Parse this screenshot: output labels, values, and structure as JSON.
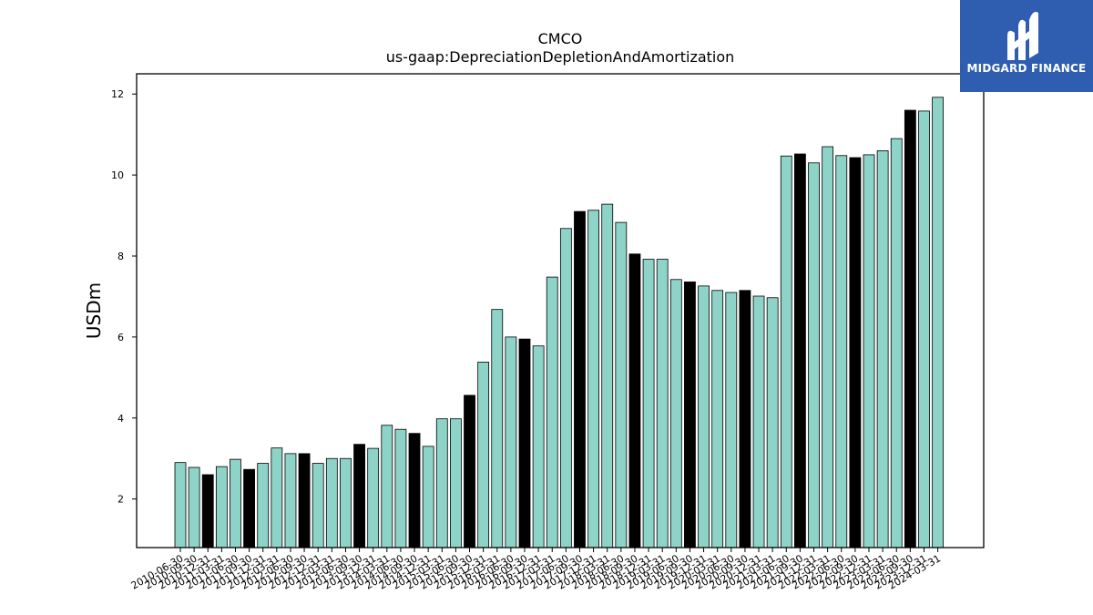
{
  "chart_data": {
    "type": "bar",
    "title": "CMCO",
    "subtitle": "us-gaap:DepreciationDepletionAndAmortization",
    "xlabel": "",
    "ylabel": "USDm",
    "ylim": [
      0.8,
      12.5
    ],
    "yticks": [
      2,
      4,
      6,
      8,
      10,
      12
    ],
    "grid": false,
    "colors": {
      "quarter": "#8dd3c7",
      "fiscal_year_end": "#000000",
      "edge": "#000000"
    },
    "categories": [
      "2010-06-30",
      "2010-09-30",
      "2010-12-31",
      "2011-03-31",
      "2011-06-30",
      "2011-09-30",
      "2011-12-31",
      "2012-03-31",
      "2012-06-30",
      "2012-09-30",
      "2012-12-31",
      "2013-03-31",
      "2013-06-30",
      "2013-09-30",
      "2013-12-31",
      "2014-03-31",
      "2014-06-30",
      "2014-09-30",
      "2014-12-31",
      "2015-03-31",
      "2015-06-30",
      "2015-09-30",
      "2015-12-31",
      "2016-03-31",
      "2016-06-30",
      "2016-09-30",
      "2016-12-31",
      "2017-03-31",
      "2017-06-30",
      "2017-09-30",
      "2017-12-31",
      "2018-03-31",
      "2018-06-30",
      "2018-09-30",
      "2018-12-31",
      "2019-03-31",
      "2019-06-30",
      "2019-09-30",
      "2019-12-31",
      "2020-03-31",
      "2020-06-30",
      "2020-09-30",
      "2020-12-31",
      "2021-03-31",
      "2021-06-30",
      "2021-09-30",
      "2021-12-31",
      "2022-03-31",
      "2022-06-30",
      "2022-09-30",
      "2022-12-31",
      "2023-03-31",
      "2023-06-30",
      "2023-09-30",
      "2023-12-31",
      "2024-03-31"
    ],
    "values": [
      2.9,
      2.78,
      2.6,
      2.8,
      2.98,
      2.73,
      2.88,
      3.26,
      3.12,
      3.12,
      2.88,
      3.0,
      3.0,
      3.35,
      3.25,
      3.82,
      3.72,
      3.62,
      3.3,
      3.98,
      3.98,
      4.56,
      5.38,
      6.68,
      6.0,
      5.95,
      5.78,
      7.48,
      8.68,
      9.1,
      9.13,
      9.28,
      8.83,
      8.05,
      7.92,
      7.92,
      7.42,
      7.36,
      7.26,
      7.15,
      7.1,
      7.15,
      7.01,
      6.97,
      10.47,
      10.52,
      10.3,
      10.7,
      10.48,
      10.43,
      10.5,
      10.6,
      10.9,
      11.6,
      11.58,
      11.92
    ],
    "highlight": [
      false,
      false,
      true,
      false,
      false,
      true,
      false,
      false,
      false,
      true,
      false,
      false,
      false,
      true,
      false,
      false,
      false,
      true,
      false,
      false,
      false,
      true,
      false,
      false,
      false,
      true,
      false,
      false,
      false,
      true,
      false,
      false,
      false,
      true,
      false,
      false,
      false,
      true,
      false,
      false,
      false,
      true,
      false,
      false,
      false,
      true,
      false,
      false,
      false,
      true,
      false,
      false,
      false,
      true,
      false,
      false
    ]
  },
  "logo": {
    "text": "MIDGARD FINANCE",
    "icon": "midgard-logo-icon",
    "background": "#2f5db0"
  }
}
